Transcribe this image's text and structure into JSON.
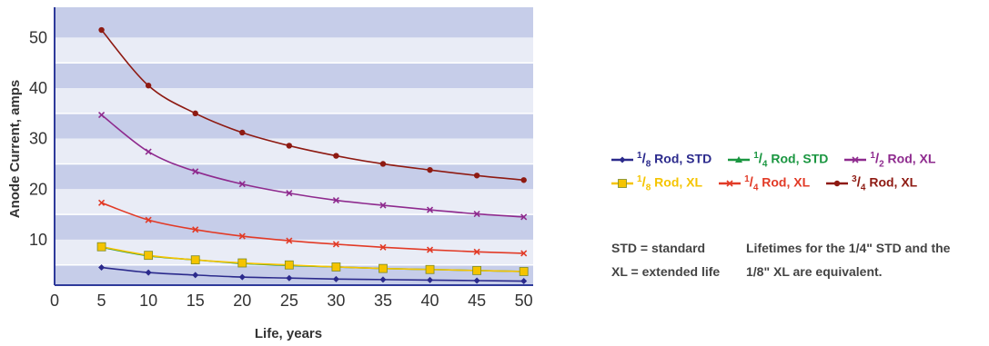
{
  "chart_data": {
    "type": "line",
    "xlabel": "Life, years",
    "ylabel": "Anode Current, amps",
    "xlim": [
      0,
      51
    ],
    "ylim": [
      1,
      56
    ],
    "xticks": [
      "0",
      "5",
      "10",
      "15",
      "20",
      "25",
      "30",
      "35",
      "40",
      "45",
      "50"
    ],
    "yticks": [
      "10",
      "20",
      "30",
      "40",
      "50"
    ],
    "x": [
      5,
      10,
      15,
      20,
      25,
      30,
      35,
      40,
      45,
      50
    ],
    "grid": "alternating horizontal bands",
    "legend_position": "right",
    "series": [
      {
        "name": "1/8 Rod, STD",
        "label_parts": [
          "1",
          "8",
          " Rod, STD"
        ],
        "color": "#2b2a8c",
        "marker": "diamond",
        "values": [
          4.5,
          3.5,
          3.0,
          2.6,
          2.4,
          2.2,
          2.1,
          2.0,
          1.9,
          1.8
        ]
      },
      {
        "name": "1/4 Rod, STD",
        "label_parts": [
          "1",
          "4",
          " Rod, STD"
        ],
        "color": "#1a9640",
        "marker": "triangle",
        "values": [
          8.5,
          6.8,
          6.0,
          5.3,
          4.9,
          4.6,
          4.3,
          4.1,
          3.9,
          3.7
        ]
      },
      {
        "name": "1/8 Rod, XL",
        "label_parts": [
          "1",
          "8",
          " Rod, XL"
        ],
        "color": "#f5c400",
        "marker": "square",
        "values": [
          8.6,
          6.9,
          6.0,
          5.4,
          5.0,
          4.6,
          4.3,
          4.1,
          3.9,
          3.7
        ]
      },
      {
        "name": "1/4 Rod, XL",
        "label_parts": [
          "1",
          "4",
          " Rod, XL"
        ],
        "color": "#e23a26",
        "marker": "x",
        "values": [
          17.3,
          13.9,
          12.0,
          10.7,
          9.8,
          9.1,
          8.5,
          8.0,
          7.6,
          7.3
        ]
      },
      {
        "name": "1/2 Rod, XL",
        "label_parts": [
          "1",
          "2",
          " Rod, XL"
        ],
        "color": "#8e2a8e",
        "marker": "x",
        "values": [
          34.7,
          27.4,
          23.5,
          21.0,
          19.2,
          17.8,
          16.8,
          15.9,
          15.1,
          14.5
        ]
      },
      {
        "name": "3/4 Rod, XL",
        "label_parts": [
          "3",
          "4",
          " Rod, XL"
        ],
        "color": "#8e1a12",
        "marker": "circle",
        "values": [
          51.5,
          40.5,
          35.0,
          31.2,
          28.6,
          26.6,
          25.0,
          23.8,
          22.7,
          21.8
        ]
      }
    ]
  },
  "legend": {
    "rows": [
      [
        0,
        1,
        4
      ],
      [
        2,
        3,
        5
      ]
    ]
  },
  "notes": {
    "abbreviations": [
      "STD = standard",
      "XL = extended life"
    ],
    "remark": [
      "Lifetimes for the 1/4\" STD and the",
      "1/8\" XL are equivalent."
    ]
  }
}
